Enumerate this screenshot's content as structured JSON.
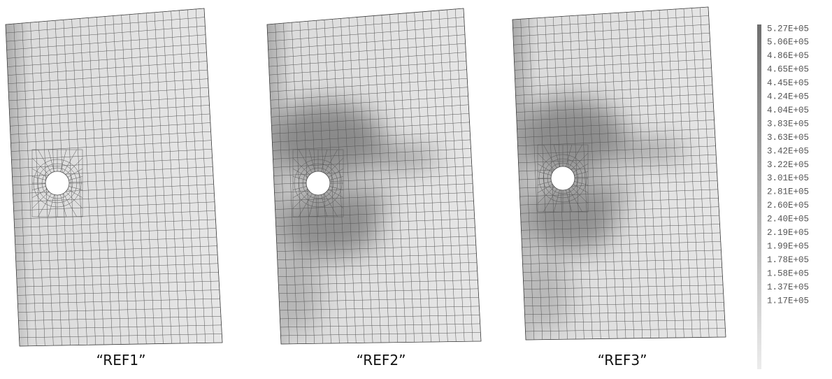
{
  "panels": [
    {
      "label": "“REF1”"
    },
    {
      "label": "“REF2”"
    },
    {
      "label": "“REF3”"
    }
  ],
  "legend": {
    "labels": [
      "5.27E+05",
      "5.06E+05",
      "4.86E+05",
      "4.65E+05",
      "4.45E+05",
      "4.24E+05",
      "4.04E+05",
      "3.83E+05",
      "3.63E+05",
      "3.42E+05",
      "3.22E+05",
      "3.01E+05",
      "2.81E+05",
      "2.60E+05",
      "2.40E+05",
      "2.19E+05",
      "1.99E+05",
      "1.78E+05",
      "1.58E+05",
      "1.37E+05",
      "1.17E+05"
    ]
  }
}
